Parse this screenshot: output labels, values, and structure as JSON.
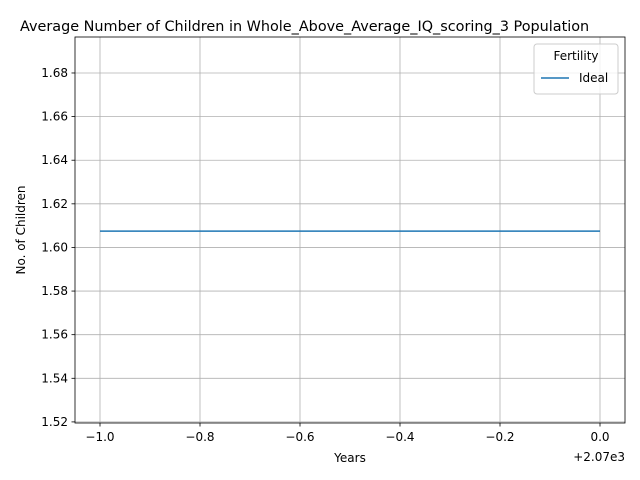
{
  "chart_data": {
    "type": "line",
    "title": "Average Number of Children in Whole_Above_Average_IQ_scoring_3 Population",
    "xlabel": "Years",
    "ylabel": "No. of Children",
    "x_offset_label": "+2.07e3",
    "x_ticks": [
      "−1.0",
      "−0.8",
      "−0.6",
      "−0.4",
      "−0.2",
      "0.0"
    ],
    "x_tick_values": [
      -1.0,
      -0.8,
      -0.6,
      -0.4,
      -0.2,
      0.0
    ],
    "y_ticks": [
      "1.52",
      "1.54",
      "1.56",
      "1.58",
      "1.60",
      "1.62",
      "1.64",
      "1.66",
      "1.68"
    ],
    "y_tick_values": [
      1.52,
      1.54,
      1.56,
      1.58,
      1.6,
      1.62,
      1.64,
      1.66,
      1.68
    ],
    "xlim": [
      -1.05,
      0.05
    ],
    "ylim": [
      1.5195,
      1.6965
    ],
    "grid": true,
    "legend": {
      "title": "Fertility",
      "placement": "top-right"
    },
    "series": [
      {
        "name": "Ideal",
        "color": "#1f77b4",
        "x": [
          -1.0,
          0.0
        ],
        "y": [
          1.6075,
          1.6075
        ]
      }
    ]
  }
}
